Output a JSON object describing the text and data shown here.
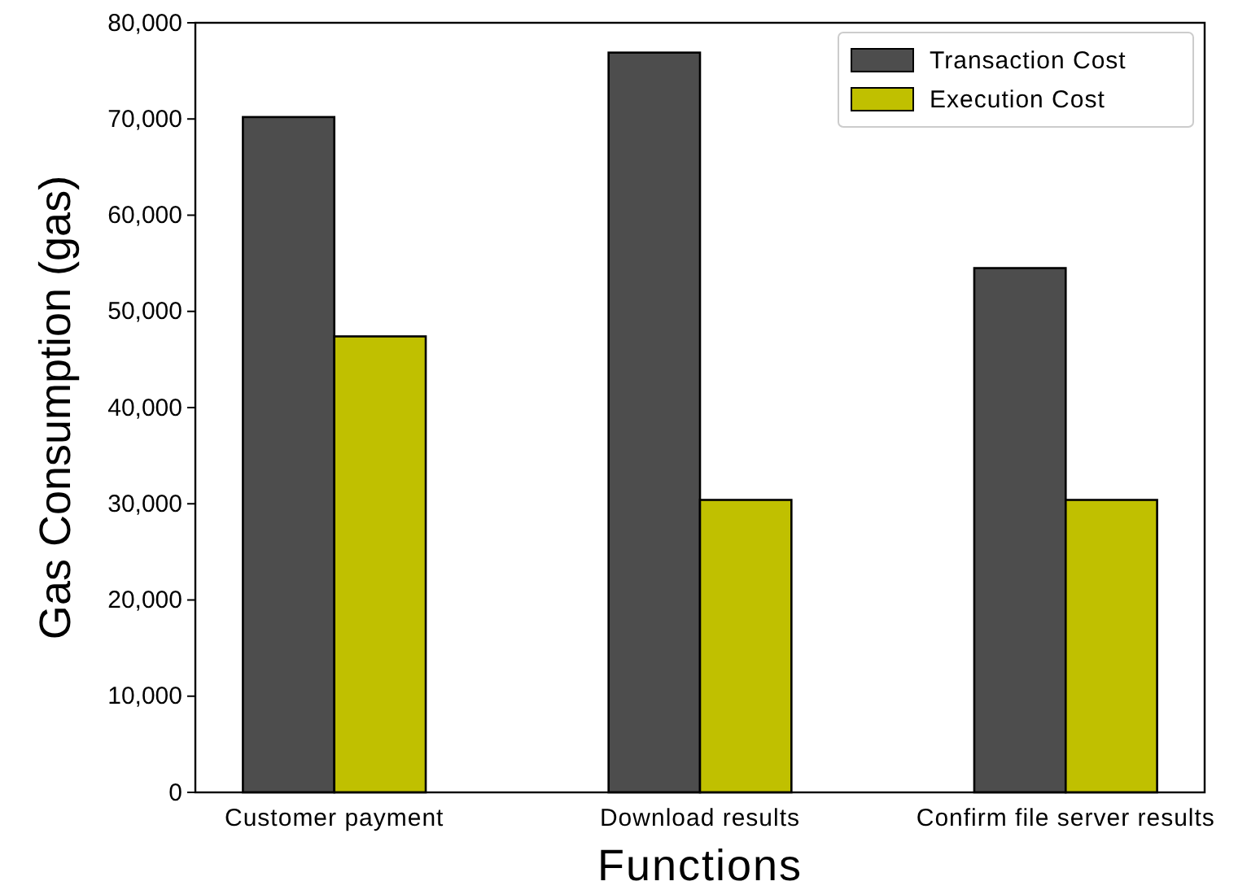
{
  "chart_data": {
    "type": "bar",
    "xlabel": "Functions",
    "ylabel": "Gas Consumption (gas)",
    "categories": [
      "Customer payment",
      "Download results",
      "Confirm file server results"
    ],
    "series": [
      {
        "name": "Transaction Cost",
        "color": "#4d4d4d",
        "values": [
          70200,
          76900,
          54500
        ]
      },
      {
        "name": "Execution Cost",
        "color": "#c0c000",
        "values": [
          47400,
          30400,
          30400
        ]
      }
    ],
    "ylim": [
      0,
      80000
    ],
    "yticks": [
      {
        "value": 0,
        "label": "0"
      },
      {
        "value": 10000,
        "label": "10,000"
      },
      {
        "value": 20000,
        "label": "20,000"
      },
      {
        "value": 30000,
        "label": "30,000"
      },
      {
        "value": 40000,
        "label": "40,000"
      },
      {
        "value": 50000,
        "label": "50,000"
      },
      {
        "value": 60000,
        "label": "60,000"
      },
      {
        "value": 70000,
        "label": "70,000"
      },
      {
        "value": 80000,
        "label": "80,000"
      }
    ],
    "legend": "top right"
  }
}
